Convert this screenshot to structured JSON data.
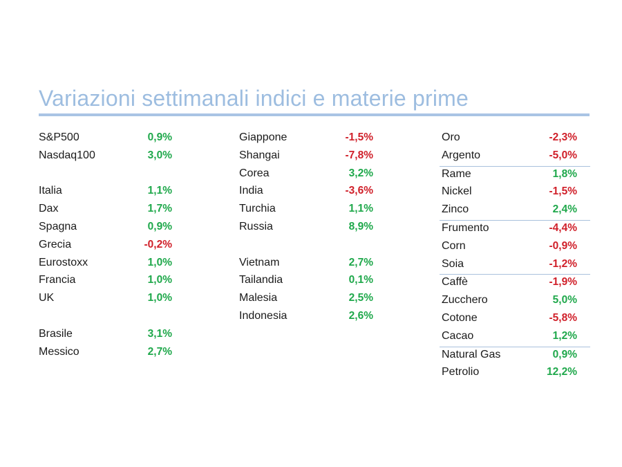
{
  "title": "Variazioni settimanali indici e materie prime",
  "colors": {
    "positive": "#1fa84b",
    "negative": "#d0202a",
    "title": "#9dbde0",
    "rule": "#a9c4e4"
  },
  "columns": [
    {
      "rows": [
        {
          "label": "S&P500",
          "value": "0,9%",
          "sign": "pos"
        },
        {
          "label": "Nasdaq100",
          "value": "3,0%",
          "sign": "pos"
        },
        {
          "spacer": true
        },
        {
          "label": "Italia",
          "value": "1,1%",
          "sign": "pos"
        },
        {
          "label": "Dax",
          "value": "1,7%",
          "sign": "pos"
        },
        {
          "label": "Spagna",
          "value": "0,9%",
          "sign": "pos"
        },
        {
          "label": "Grecia",
          "value": "-0,2%",
          "sign": "neg"
        },
        {
          "label": "Eurostoxx",
          "value": "1,0%",
          "sign": "pos"
        },
        {
          "label": "Francia",
          "value": "1,0%",
          "sign": "pos"
        },
        {
          "label": "UK",
          "value": "1,0%",
          "sign": "pos"
        },
        {
          "spacer": true
        },
        {
          "label": "Brasile",
          "value": "3,1%",
          "sign": "pos"
        },
        {
          "label": "Messico",
          "value": "2,7%",
          "sign": "pos"
        }
      ]
    },
    {
      "rows": [
        {
          "label": "Giappone",
          "value": "-1,5%",
          "sign": "neg"
        },
        {
          "label": "Shangai",
          "value": "-7,8%",
          "sign": "neg"
        },
        {
          "label": "Corea",
          "value": "3,2%",
          "sign": "pos"
        },
        {
          "label": "India",
          "value": "-3,6%",
          "sign": "neg"
        },
        {
          "label": "Turchia",
          "value": "1,1%",
          "sign": "pos"
        },
        {
          "label": "Russia",
          "value": "8,9%",
          "sign": "pos"
        },
        {
          "spacer": true
        },
        {
          "label": "Vietnam",
          "value": "2,7%",
          "sign": "pos"
        },
        {
          "label": "Tailandia",
          "value": "0,1%",
          "sign": "pos"
        },
        {
          "label": "Malesia",
          "value": "2,5%",
          "sign": "pos"
        },
        {
          "label": "Indonesia",
          "value": "2,6%",
          "sign": "pos"
        }
      ]
    },
    {
      "rows": [
        {
          "label": "Oro",
          "value": "-2,3%",
          "sign": "neg"
        },
        {
          "label": "Argento",
          "value": "-5,0%",
          "sign": "neg",
          "separator": true
        },
        {
          "label": "Rame",
          "value": "1,8%",
          "sign": "pos"
        },
        {
          "label": "Nickel",
          "value": "-1,5%",
          "sign": "neg"
        },
        {
          "label": "Zinco",
          "value": "2,4%",
          "sign": "pos",
          "separator": true
        },
        {
          "label": "Frumento",
          "value": "-4,4%",
          "sign": "neg"
        },
        {
          "label": "Corn",
          "value": "-0,9%",
          "sign": "neg"
        },
        {
          "label": "Soia",
          "value": "-1,2%",
          "sign": "neg",
          "separator": true
        },
        {
          "label": "Caffè",
          "value": "-1,9%",
          "sign": "neg"
        },
        {
          "label": "Zucchero",
          "value": "5,0%",
          "sign": "pos"
        },
        {
          "label": "Cotone",
          "value": "-5,8%",
          "sign": "neg"
        },
        {
          "label": "Cacao",
          "value": "1,2%",
          "sign": "pos",
          "separator": true
        },
        {
          "label": "Natural Gas",
          "value": "0,9%",
          "sign": "pos"
        },
        {
          "label": "Petrolio",
          "value": "12,2%",
          "sign": "pos"
        }
      ]
    }
  ]
}
